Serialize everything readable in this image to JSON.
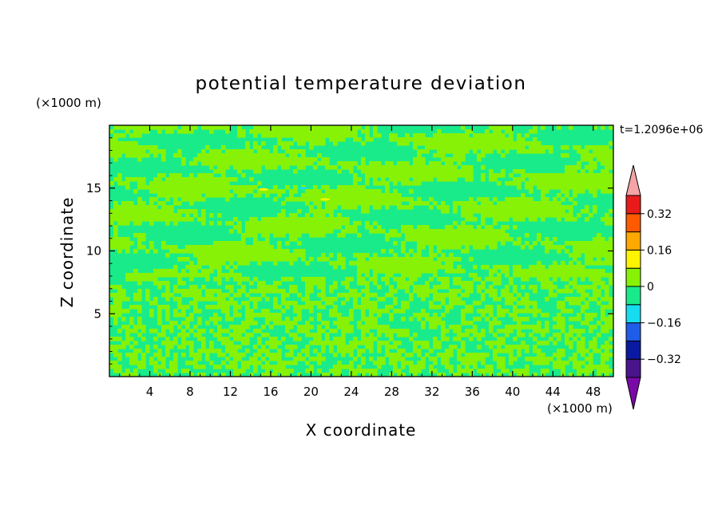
{
  "chart_data": {
    "type": "heatmap",
    "title": "potential temperature deviation",
    "xlabel": "X coordinate",
    "ylabel": "Z coordinate",
    "x_unit": "(×1000 m)",
    "y_unit": "(×1000 m)",
    "time_label": "t=1.2096e+06",
    "xlim": [
      0,
      50
    ],
    "ylim": [
      0,
      20
    ],
    "x_ticks": [
      4,
      8,
      12,
      16,
      20,
      24,
      28,
      32,
      36,
      40,
      44,
      48
    ],
    "y_ticks": [
      5,
      10,
      15
    ],
    "grid": false,
    "colorbar": {
      "levels": [
        -0.4,
        -0.32,
        -0.24,
        -0.16,
        -0.08,
        0,
        0.08,
        0.16,
        0.24,
        0.32,
        0.4
      ],
      "tick_labels": [
        "0.32",
        "0.16",
        "0",
        "-0.16",
        "-0.32"
      ],
      "colors": [
        "#7a0aa8",
        "#4a148c",
        "#0a1aa0",
        "#1f5ce8",
        "#16dcef",
        "#19eb8b",
        "#87f205",
        "#fff400",
        "#ffa800",
        "#ff5a00",
        "#e81a1a",
        "#f4a4a4"
      ]
    },
    "field_description_values": {
      "dominant_colors": [
        "#19eb8b",
        "#87f205"
      ],
      "local_extremes": [
        {
          "x": 15.3,
          "z": 14.9,
          "value": 0.1
        },
        {
          "x": 21.4,
          "z": 14.1,
          "value": 0.12
        },
        {
          "x": 19.2,
          "z": 15.0,
          "value": -0.09
        }
      ]
    }
  }
}
